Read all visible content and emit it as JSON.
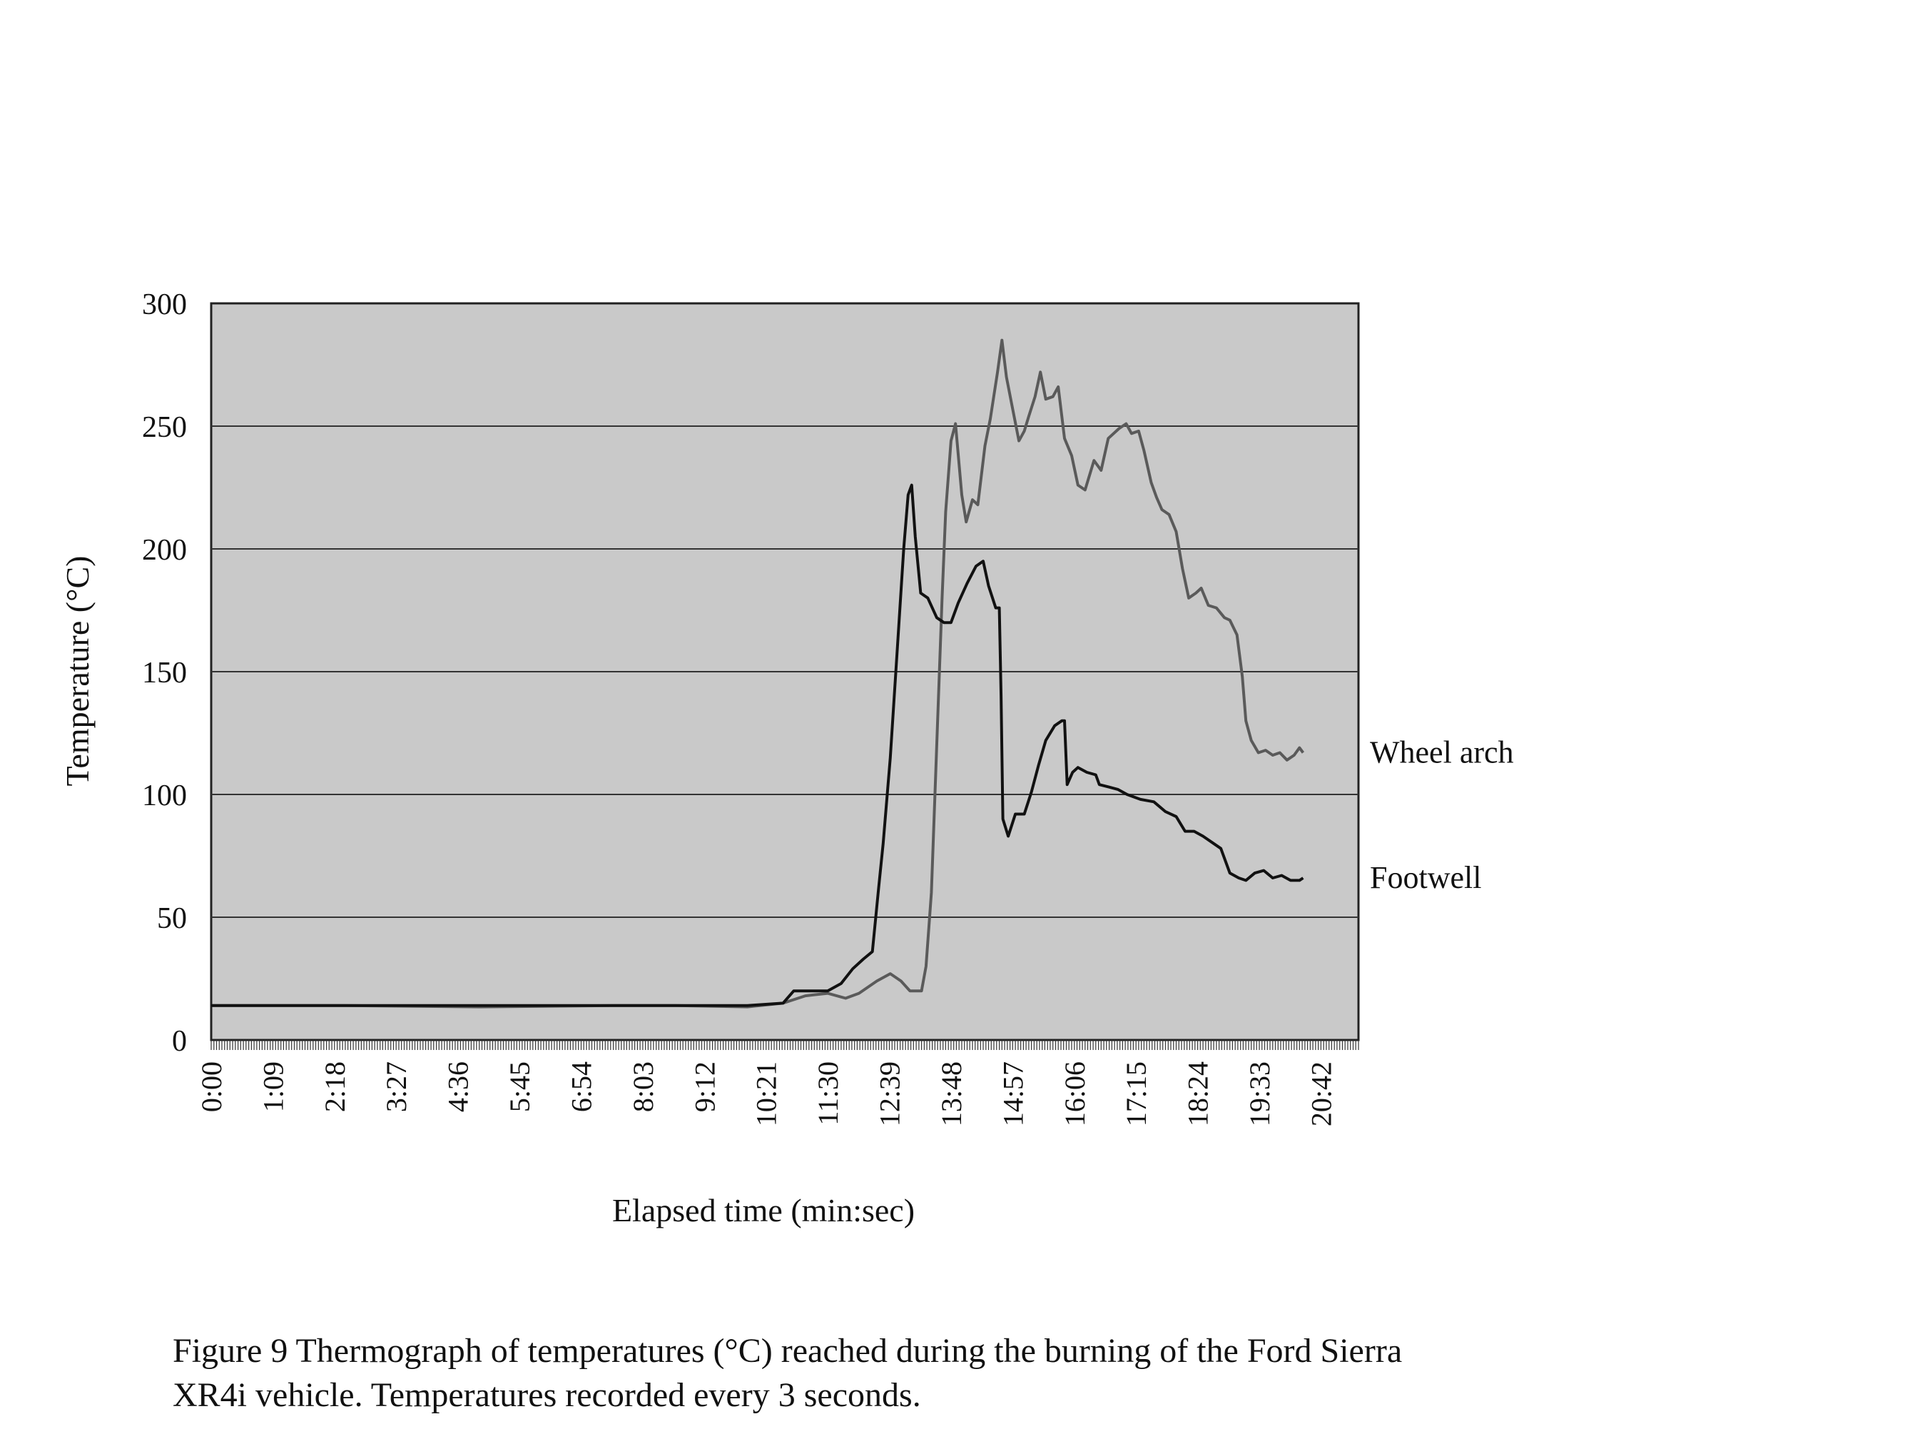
{
  "chart_data": {
    "type": "line",
    "xlabel": "Elapsed time (min:sec)",
    "ylabel": "Temperature (°C)",
    "ylim": [
      0,
      300
    ],
    "yticks": [
      0,
      50,
      100,
      150,
      200,
      250,
      300
    ],
    "xlim": [
      0,
      1284
    ],
    "x_units": "seconds elapsed (axis labels shown as min:sec)",
    "xtick_labels": [
      "0:00",
      "1:09",
      "2:18",
      "3:27",
      "4:36",
      "5:45",
      "6:54",
      "8:03",
      "9:12",
      "10:21",
      "11:30",
      "12:39",
      "13:48",
      "14:57",
      "16:06",
      "17:15",
      "18:24",
      "19:33",
      "20:42"
    ],
    "xtick_seconds": [
      0,
      69,
      138,
      207,
      276,
      345,
      414,
      483,
      552,
      621,
      690,
      759,
      828,
      897,
      966,
      1035,
      1104,
      1173,
      1242
    ],
    "grid": "horizontal",
    "background": "#c9c9c9",
    "series": [
      {
        "name": "Wheel arch",
        "color": "#5a5a5a",
        "points": [
          [
            0,
            14
          ],
          [
            150,
            14
          ],
          [
            300,
            13.5
          ],
          [
            450,
            14
          ],
          [
            520,
            14
          ],
          [
            600,
            13.5
          ],
          [
            640,
            15
          ],
          [
            665,
            18
          ],
          [
            690,
            19
          ],
          [
            710,
            17
          ],
          [
            725,
            19
          ],
          [
            745,
            24
          ],
          [
            760,
            27
          ],
          [
            772,
            24
          ],
          [
            782,
            20
          ],
          [
            795,
            20
          ],
          [
            800,
            30
          ],
          [
            806,
            60
          ],
          [
            812,
            120
          ],
          [
            818,
            180
          ],
          [
            822,
            215
          ],
          [
            828,
            244
          ],
          [
            833,
            251
          ],
          [
            840,
            222
          ],
          [
            845,
            211
          ],
          [
            852,
            220
          ],
          [
            858,
            218
          ],
          [
            866,
            242
          ],
          [
            872,
            253
          ],
          [
            880,
            272
          ],
          [
            885,
            285
          ],
          [
            890,
            270
          ],
          [
            897,
            257
          ],
          [
            904,
            244
          ],
          [
            910,
            248
          ],
          [
            915,
            254
          ],
          [
            922,
            262
          ],
          [
            928,
            272
          ],
          [
            934,
            261
          ],
          [
            942,
            262
          ],
          [
            948,
            266
          ],
          [
            955,
            245
          ],
          [
            963,
            238
          ],
          [
            970,
            226
          ],
          [
            978,
            224
          ],
          [
            988,
            236
          ],
          [
            996,
            232
          ],
          [
            1004,
            245
          ],
          [
            1016,
            249
          ],
          [
            1024,
            251
          ],
          [
            1030,
            247
          ],
          [
            1038,
            248
          ],
          [
            1044,
            240
          ],
          [
            1052,
            227
          ],
          [
            1058,
            221
          ],
          [
            1064,
            216
          ],
          [
            1072,
            214
          ],
          [
            1080,
            207
          ],
          [
            1087,
            192
          ],
          [
            1094,
            180
          ],
          [
            1102,
            182
          ],
          [
            1108,
            184
          ],
          [
            1116,
            177
          ],
          [
            1125,
            176
          ],
          [
            1134,
            172
          ],
          [
            1140,
            171
          ],
          [
            1148,
            165
          ],
          [
            1154,
            148
          ],
          [
            1158,
            130
          ],
          [
            1164,
            122
          ],
          [
            1172,
            117
          ],
          [
            1180,
            118
          ],
          [
            1188,
            116
          ],
          [
            1196,
            117
          ],
          [
            1204,
            114
          ],
          [
            1212,
            116
          ],
          [
            1218,
            119
          ],
          [
            1222,
            117
          ]
        ]
      },
      {
        "name": "Footwell",
        "color": "#111111",
        "points": [
          [
            0,
            14
          ],
          [
            150,
            14
          ],
          [
            300,
            14
          ],
          [
            450,
            14
          ],
          [
            520,
            14
          ],
          [
            600,
            14
          ],
          [
            640,
            15
          ],
          [
            652,
            20
          ],
          [
            670,
            20
          ],
          [
            690,
            20
          ],
          [
            705,
            23
          ],
          [
            718,
            29
          ],
          [
            730,
            33
          ],
          [
            740,
            36
          ],
          [
            747,
            62
          ],
          [
            752,
            80
          ],
          [
            760,
            115
          ],
          [
            768,
            160
          ],
          [
            775,
            200
          ],
          [
            780,
            222
          ],
          [
            784,
            226
          ],
          [
            788,
            205
          ],
          [
            794,
            182
          ],
          [
            802,
            180
          ],
          [
            812,
            172
          ],
          [
            820,
            170
          ],
          [
            828,
            170
          ],
          [
            836,
            178
          ],
          [
            846,
            186
          ],
          [
            856,
            193
          ],
          [
            864,
            195
          ],
          [
            870,
            185
          ],
          [
            878,
            176
          ],
          [
            882,
            176
          ],
          [
            884,
            140
          ],
          [
            886,
            90
          ],
          [
            892,
            83
          ],
          [
            900,
            92
          ],
          [
            910,
            92
          ],
          [
            918,
            101
          ],
          [
            926,
            112
          ],
          [
            934,
            122
          ],
          [
            944,
            128
          ],
          [
            952,
            130
          ],
          [
            955,
            130
          ],
          [
            958,
            104
          ],
          [
            964,
            109
          ],
          [
            970,
            111
          ],
          [
            980,
            109
          ],
          [
            990,
            108
          ],
          [
            994,
            104
          ],
          [
            1005,
            103
          ],
          [
            1015,
            102
          ],
          [
            1025,
            100
          ],
          [
            1040,
            98
          ],
          [
            1055,
            97
          ],
          [
            1068,
            93
          ],
          [
            1080,
            91
          ],
          [
            1090,
            85
          ],
          [
            1100,
            85
          ],
          [
            1110,
            83
          ],
          [
            1122,
            80
          ],
          [
            1130,
            78
          ],
          [
            1140,
            68
          ],
          [
            1150,
            66
          ],
          [
            1158,
            65
          ],
          [
            1168,
            68
          ],
          [
            1178,
            69
          ],
          [
            1188,
            66
          ],
          [
            1198,
            67
          ],
          [
            1208,
            65
          ],
          [
            1218,
            65
          ],
          [
            1222,
            66
          ]
        ]
      }
    ]
  },
  "caption": {
    "line1": "Figure 9 Thermograph of temperatures (°C) reached during the burning of the Ford Sierra",
    "line2": "XR4i vehicle.  Temperatures recorded every 3 seconds."
  }
}
